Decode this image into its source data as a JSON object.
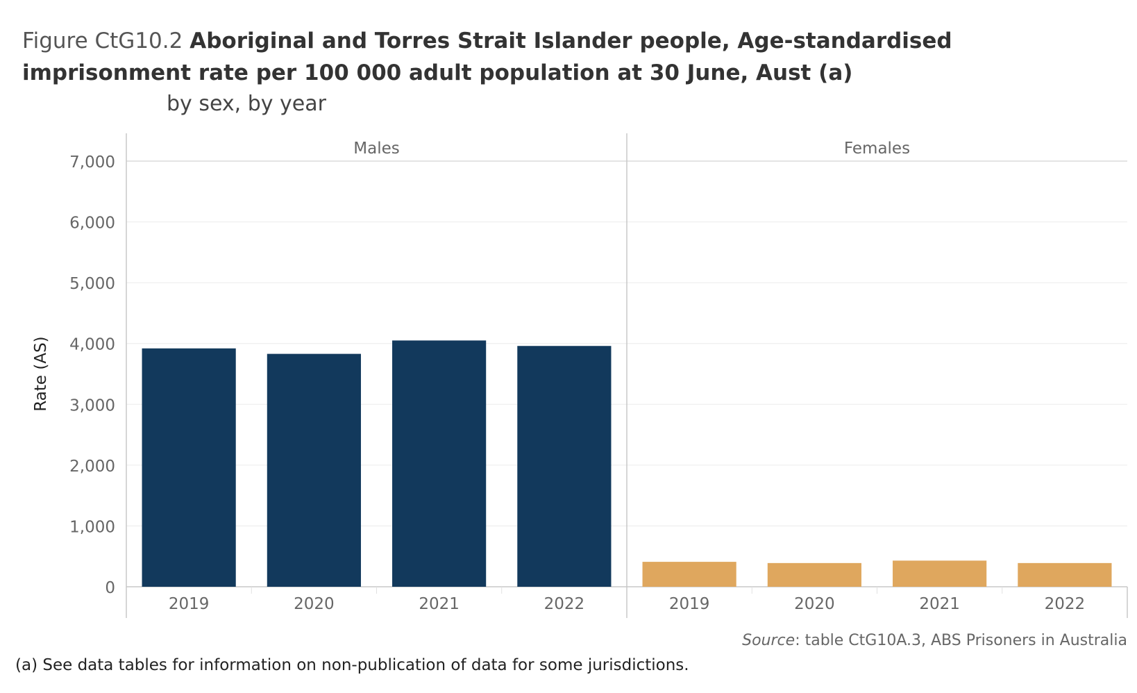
{
  "title": {
    "prefix": "Figure CtG10.2",
    "main": "Aboriginal and Torres Strait Islander people, Age-standardised imprisonment rate per 100 000 adult population at 30 June, Aust (a)",
    "subtitle": "by sex, by year"
  },
  "chart_data": {
    "type": "bar",
    "ylabel": "Rate (AS)",
    "ylim": [
      0,
      7000
    ],
    "yticks": [
      0,
      1000,
      2000,
      3000,
      4000,
      5000,
      6000,
      7000
    ],
    "ytick_labels": [
      "0",
      "1,000",
      "2,000",
      "3,000",
      "4,000",
      "5,000",
      "6,000",
      "7,000"
    ],
    "grid": true,
    "panels": [
      {
        "name": "Males",
        "categories": [
          "2019",
          "2020",
          "2021",
          "2022"
        ],
        "values": [
          3920,
          3830,
          4050,
          3960
        ],
        "color": "#12395C"
      },
      {
        "name": "Females",
        "categories": [
          "2019",
          "2020",
          "2021",
          "2022"
        ],
        "values": [
          410,
          390,
          430,
          390
        ],
        "color": "#DFA75E"
      }
    ]
  },
  "source": {
    "label": "Source",
    "text": ": table CtG10A.3, ABS Prisoners in Australia"
  },
  "footnote": "(a) See data tables for information on non-publication of data for some jurisdictions."
}
